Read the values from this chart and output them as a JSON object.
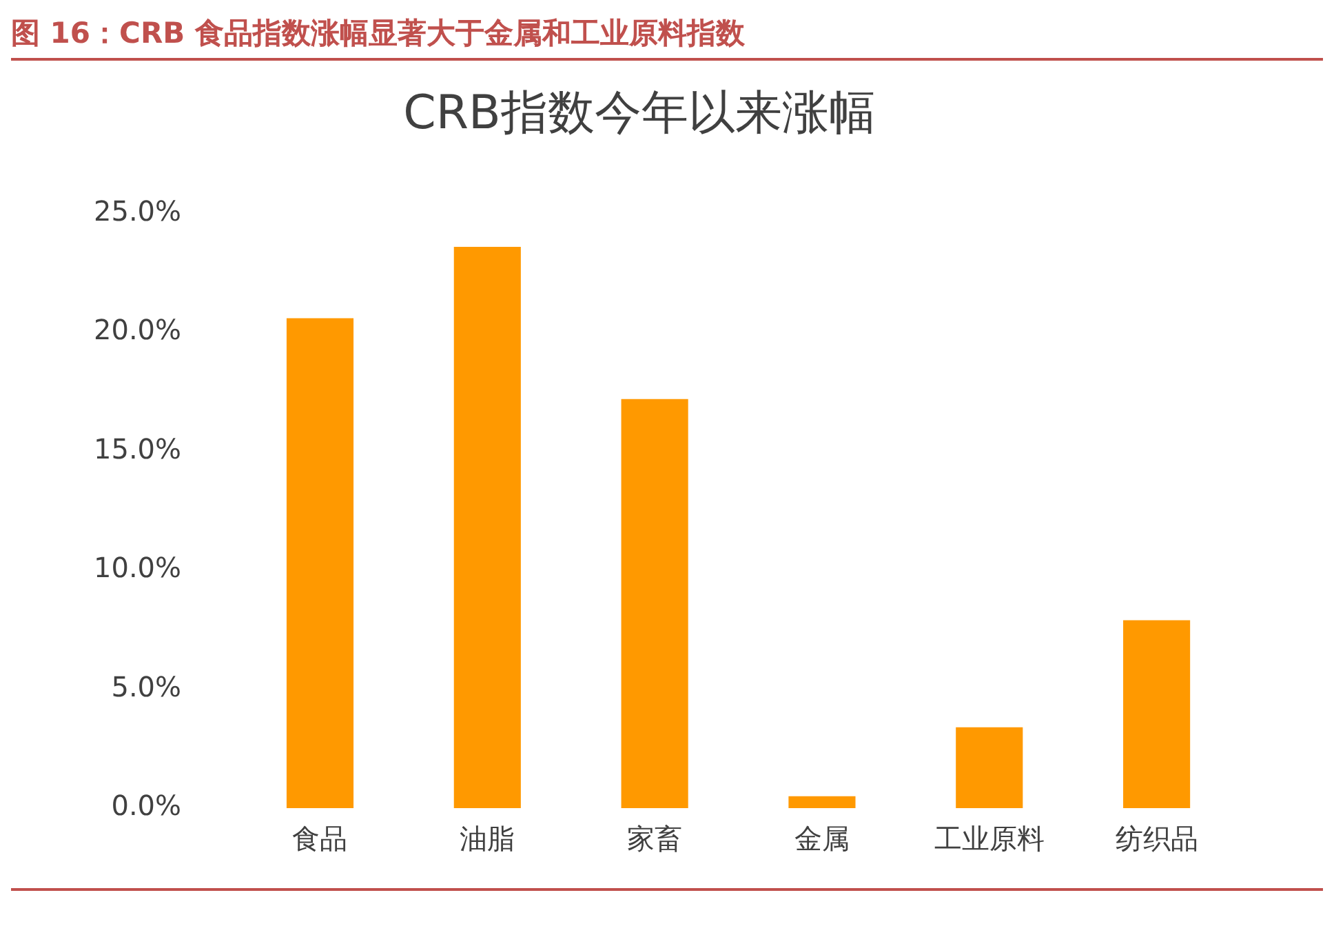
{
  "chart_data": {
    "type": "bar",
    "title": "图 16：CRB 食品指数涨幅显著大于金属和工业原料指数",
    "subtitle": "CRB指数今年以来涨幅",
    "categories": [
      "食品",
      "油脂",
      "家畜",
      "金属",
      "工业原料",
      "纺织品"
    ],
    "values": [
      20.6,
      23.6,
      17.2,
      0.5,
      3.4,
      7.9
    ],
    "color": "#ff9900",
    "ylim": [
      0,
      25
    ],
    "yticks": [
      {
        "value": 0,
        "label": "0.0%"
      },
      {
        "value": 5,
        "label": "5.0%"
      },
      {
        "value": 10,
        "label": "10.0%"
      },
      {
        "value": 15,
        "label": "15.0%"
      },
      {
        "value": 20,
        "label": "20.0%"
      },
      {
        "value": 25,
        "label": "25.0%"
      }
    ],
    "grid": false,
    "legend": false
  }
}
